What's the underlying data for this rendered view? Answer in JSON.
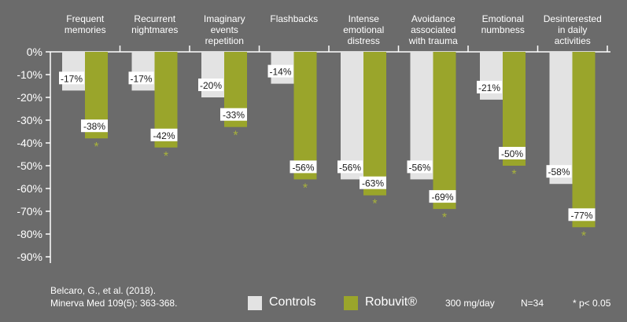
{
  "chart_data": {
    "type": "bar",
    "categories": [
      [
        "Frequent",
        "memories"
      ],
      [
        "Recurrent",
        "nightmares"
      ],
      [
        "Imaginary",
        "events",
        "repetition"
      ],
      [
        "Flashbacks"
      ],
      [
        "Intense",
        "emotional",
        "distress"
      ],
      [
        "Avoidance",
        "associated",
        "with trauma"
      ],
      [
        "Emotional",
        "numbness"
      ],
      [
        "Desinterested",
        "in daily",
        "activities"
      ]
    ],
    "series": [
      {
        "name": "Controls",
        "values": [
          -17,
          -17,
          -20,
          -14,
          -56,
          -56,
          -21,
          -58
        ],
        "labels": [
          "-17%",
          "-17%",
          "-20%",
          "-14%",
          "-56%",
          "-56%",
          "-21%",
          "-58%"
        ]
      },
      {
        "name": "Robuvit®",
        "values": [
          -38,
          -42,
          -33,
          -56,
          -63,
          -69,
          -50,
          -77
        ],
        "labels": [
          "-38%",
          "-42%",
          "-33%",
          "-56%",
          "-63%",
          "-69%",
          "-50%",
          "-77%"
        ]
      }
    ],
    "significance_marker": "*",
    "y_ticks": [
      0,
      -10,
      -20,
      -30,
      -40,
      -50,
      -60,
      -70,
      -80,
      -90
    ],
    "y_tick_labels": [
      "0%",
      "-10%",
      "-20%",
      "-30%",
      "-40%",
      "-50%",
      "-60%",
      "-70%",
      "-80%",
      "-90%"
    ],
    "ylim": [
      -90,
      0
    ],
    "xlabel": "",
    "ylabel": "",
    "grid": false,
    "legend_position": "bottom"
  },
  "colors": {
    "background": "#6b6b6b",
    "controls": "#e3e3e3",
    "robuvit": "#9aa52b",
    "asterisk": "#a9b43a",
    "axis": "#ffffff",
    "label_bg": "#ffffff",
    "label_text": "#1a1a1a"
  },
  "footer": {
    "citation_line1": "Belcaro, G., et al. (2018).",
    "citation_line2": "Minerva Med 109(5): 363-368.",
    "legend_controls": "Controls",
    "legend_robuvit": "Robuvit®",
    "dose": "300 mg/day",
    "n": "N=34",
    "pvalue": "* p< 0.05"
  }
}
